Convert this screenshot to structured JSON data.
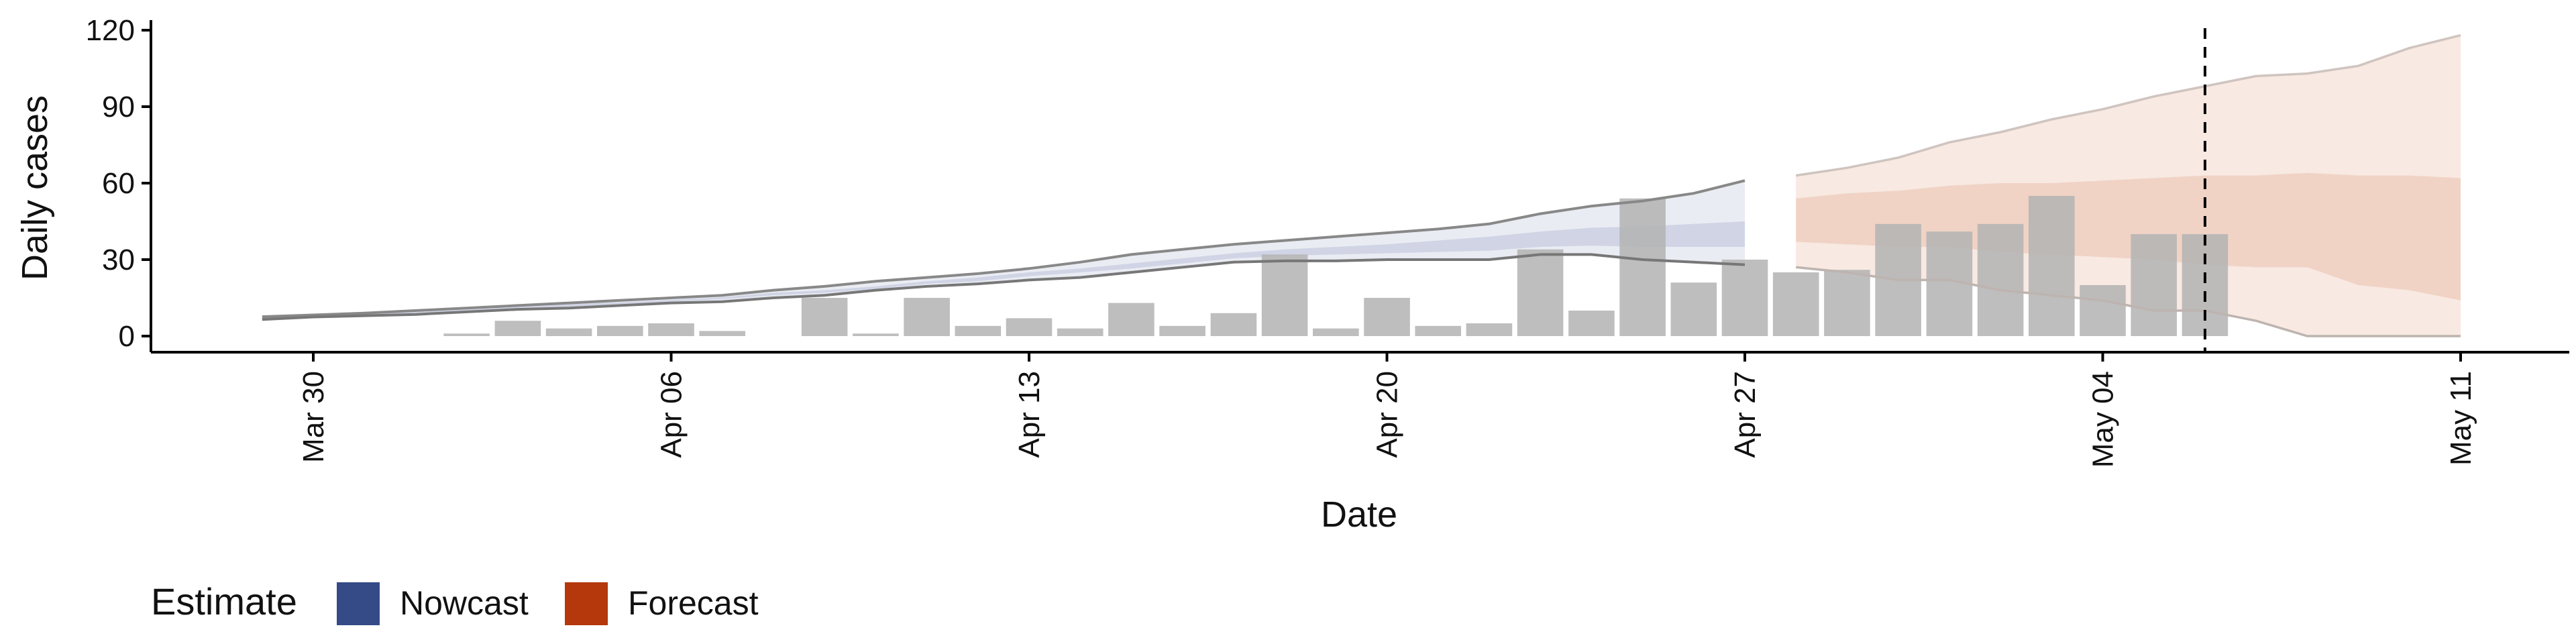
{
  "chart_data": {
    "type": "bar",
    "title": "",
    "xlabel": "Date",
    "ylabel": "Daily cases",
    "ylim": [
      0,
      120
    ],
    "y_ticks": [
      0,
      30,
      60,
      90,
      120
    ],
    "x_range": [
      "2020-03-30",
      "2020-05-11"
    ],
    "x_ticks": [
      {
        "date": "2020-03-30",
        "label": "Mar 30"
      },
      {
        "date": "2020-04-06",
        "label": "Apr 06"
      },
      {
        "date": "2020-04-13",
        "label": "Apr 13"
      },
      {
        "date": "2020-04-20",
        "label": "Apr 20"
      },
      {
        "date": "2020-04-27",
        "label": "Apr 27"
      },
      {
        "date": "2020-05-04",
        "label": "May 04"
      },
      {
        "date": "2020-05-11",
        "label": "May 11"
      }
    ],
    "vline_date": "2020-05-06",
    "grid": false,
    "legend": {
      "title": "Estimate",
      "placement": "bottom-left",
      "entries": [
        {
          "label": "Nowcast",
          "color": "#354b87"
        },
        {
          "label": "Forecast",
          "color": "#b5380c"
        }
      ]
    },
    "bar_color": "#b3b3b3",
    "observed_cases": {
      "dates": [
        "2020-04-02",
        "2020-04-03",
        "2020-04-04",
        "2020-04-05",
        "2020-04-06",
        "2020-04-07",
        "2020-04-08",
        "2020-04-09",
        "2020-04-10",
        "2020-04-11",
        "2020-04-12",
        "2020-04-13",
        "2020-04-14",
        "2020-04-15",
        "2020-04-16",
        "2020-04-17",
        "2020-04-18",
        "2020-04-19",
        "2020-04-20",
        "2020-04-21",
        "2020-04-22",
        "2020-04-23",
        "2020-04-24",
        "2020-04-25",
        "2020-04-26",
        "2020-04-27",
        "2020-04-28",
        "2020-04-29",
        "2020-04-30",
        "2020-05-01",
        "2020-05-02",
        "2020-05-03",
        "2020-05-04",
        "2020-05-05",
        "2020-05-06"
      ],
      "values": [
        1,
        6,
        3,
        4,
        5,
        2,
        0,
        15,
        1,
        15,
        4,
        7,
        3,
        13,
        4,
        9,
        32,
        3,
        15,
        4,
        5,
        34,
        10,
        54,
        21,
        30,
        25,
        26,
        44,
        41,
        44,
        55,
        20,
        40,
        40
      ]
    },
    "series": [
      {
        "name": "Nowcast",
        "color": "#354b87",
        "dates": [
          "2020-03-29",
          "2020-03-30",
          "2020-03-31",
          "2020-04-01",
          "2020-04-02",
          "2020-04-03",
          "2020-04-04",
          "2020-04-05",
          "2020-04-06",
          "2020-04-07",
          "2020-04-08",
          "2020-04-09",
          "2020-04-10",
          "2020-04-11",
          "2020-04-12",
          "2020-04-13",
          "2020-04-14",
          "2020-04-15",
          "2020-04-16",
          "2020-04-17",
          "2020-04-18",
          "2020-04-19",
          "2020-04-20",
          "2020-04-21",
          "2020-04-22",
          "2020-04-23",
          "2020-04-24",
          "2020-04-25",
          "2020-04-26",
          "2020-04-27"
        ],
        "lower_90": [
          6.5,
          7.5,
          8,
          8.5,
          9.5,
          10.5,
          11,
          12,
          13,
          13.5,
          15,
          16,
          18,
          19.5,
          20.5,
          22,
          23,
          25,
          27,
          29,
          29.5,
          29.5,
          30,
          30,
          30,
          32,
          32,
          30,
          29,
          28
        ],
        "lower_50": [
          7,
          7.8,
          8.3,
          9,
          10,
          11,
          11.5,
          12.6,
          13.5,
          14.5,
          16,
          17,
          18.5,
          20.5,
          21.5,
          23.5,
          25,
          26.5,
          28.5,
          30.5,
          31.5,
          32,
          32.5,
          33,
          33.5,
          35,
          35.5,
          35,
          35,
          35
        ],
        "upper_50": [
          7.3,
          8,
          8.7,
          9.5,
          10.5,
          11.5,
          12.5,
          13.2,
          14.2,
          15.2,
          17,
          18,
          19.5,
          21.5,
          23,
          25,
          26.5,
          28.5,
          30.5,
          32.5,
          34,
          35,
          36,
          37.5,
          39,
          41,
          42.5,
          43,
          44,
          45
        ],
        "upper_90": [
          7.6,
          8.3,
          9,
          10,
          11,
          12,
          13,
          14,
          15,
          16,
          18,
          19.5,
          21.5,
          23,
          24.5,
          26.5,
          29,
          32,
          34,
          36,
          37.5,
          39,
          40.5,
          42,
          44,
          48,
          51,
          53,
          56,
          61
        ]
      },
      {
        "name": "Forecast",
        "color": "#b5380c",
        "dates": [
          "2020-04-28",
          "2020-04-29",
          "2020-04-30",
          "2020-05-01",
          "2020-05-02",
          "2020-05-03",
          "2020-05-04",
          "2020-05-05",
          "2020-05-06",
          "2020-05-07",
          "2020-05-08",
          "2020-05-09",
          "2020-05-10",
          "2020-05-11"
        ],
        "lower_90": [
          27,
          25,
          22,
          22,
          18,
          16,
          14,
          10,
          10,
          6,
          0,
          0,
          0,
          0
        ],
        "lower_50": [
          37,
          36,
          35,
          35,
          33,
          32,
          31,
          30,
          28,
          27,
          27,
          20,
          18,
          14
        ],
        "upper_50": [
          54,
          56,
          57,
          59,
          60,
          60,
          61,
          62,
          63,
          63,
          64,
          63,
          63,
          62
        ],
        "upper_90": [
          63,
          66,
          70,
          76,
          80,
          85,
          89,
          94,
          98,
          102,
          103,
          106,
          113,
          118
        ]
      }
    ]
  }
}
